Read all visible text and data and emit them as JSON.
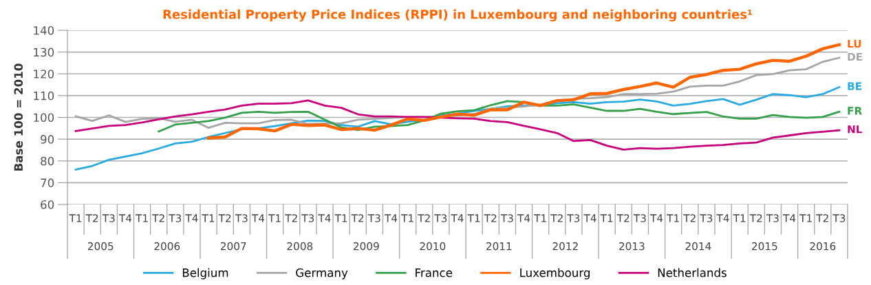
{
  "chart_data": {
    "type": "line",
    "title": "Residential Property Price Indices (RPPI) in Luxembourg and neighboring countries¹",
    "ylabel": "Base 100 = 2010",
    "categories": [
      "T1",
      "T2",
      "T3",
      "T4",
      "T1",
      "T2",
      "T3",
      "T4",
      "T1",
      "T2",
      "T3",
      "T4",
      "T1",
      "T2",
      "T3",
      "T4",
      "T1",
      "T2",
      "T3",
      "T4",
      "T1",
      "T2",
      "T3",
      "T4",
      "T1",
      "T2",
      "T3",
      "T4",
      "T1",
      "T2",
      "T3",
      "T4",
      "T1",
      "T2",
      "T3",
      "T4",
      "T1",
      "T2",
      "T3",
      "T4",
      "T1",
      "T2",
      "T3",
      "T4",
      "T1",
      "T2",
      "T3"
    ],
    "series": [
      {
        "name": "Belgium",
        "color": "#29abe2",
        "values": [
          76,
          77.7,
          80.5,
          82,
          83.5,
          85.7,
          88,
          88.8,
          91,
          92.8,
          94.6,
          95,
          96,
          97.3,
          98.5,
          98.4,
          96.5,
          95.7,
          98.3,
          96.8,
          98,
          98.9,
          100.9,
          101.7,
          103,
          103.9,
          105.1,
          105.4,
          105.6,
          106.5,
          107,
          106.3,
          107,
          107.2,
          108.2,
          107.3,
          105.4,
          106.2,
          107.5,
          108.4,
          105.8,
          108.1,
          110.7,
          110.2,
          109.3,
          110.7,
          113.9
        ]
      },
      {
        "name": "Germany",
        "color": "#a6a6a6",
        "values": [
          100.5,
          98.4,
          100.9,
          97.9,
          99.3,
          99.6,
          98,
          98.9,
          95.2,
          97.5,
          97.3,
          97.3,
          98.8,
          98.9,
          97,
          97.2,
          97.3,
          98.9,
          99.3,
          99.7,
          100.2,
          100.2,
          100.5,
          100.8,
          101.5,
          104,
          104.5,
          105,
          106,
          107.5,
          108.5,
          108.8,
          109.3,
          110.7,
          110.7,
          110.9,
          111.8,
          114.1,
          114.6,
          114.6,
          116.5,
          119.4,
          119.9,
          121.6,
          122.1,
          125.5,
          127.4
        ]
      },
      {
        "name": "France",
        "color": "#34a04a",
        "values": [
          null,
          null,
          null,
          null,
          null,
          93.5,
          96.7,
          97.5,
          98.3,
          99.9,
          102.1,
          102.6,
          102.1,
          102.5,
          102.6,
          99,
          95.4,
          94.2,
          95.7,
          96,
          96.5,
          98.6,
          101.7,
          102.8,
          103.3,
          105.6,
          107.5,
          107,
          105.4,
          105.4,
          106,
          104.5,
          103,
          103,
          103.9,
          102.6,
          101.5,
          102,
          102.5,
          100.4,
          99.4,
          99.4,
          101.1,
          100.2,
          99.8,
          100.2,
          102.6
        ]
      },
      {
        "name": "Luxembourg",
        "color": "#ff6600",
        "values": [
          null,
          null,
          null,
          null,
          null,
          null,
          null,
          null,
          90.5,
          91,
          94.9,
          94.8,
          93.8,
          96.8,
          96.3,
          96.5,
          94.4,
          94.9,
          94.1,
          96.5,
          99.3,
          98.6,
          100.2,
          101.5,
          101,
          103.5,
          103.5,
          107,
          105.4,
          107.7,
          108.1,
          110.8,
          111,
          112.8,
          114.2,
          115.8,
          113.9,
          118.4,
          119.7,
          121.6,
          122.1,
          124.6,
          126.2,
          125.8,
          128.1,
          131.5,
          133.4
        ]
      },
      {
        "name": "Netherlands",
        "color": "#c8007a",
        "values": [
          93.7,
          94.9,
          96.1,
          96.5,
          97.7,
          99.1,
          100.4,
          101.4,
          102.6,
          103.6,
          105.4,
          106.3,
          106.3,
          106.5,
          107.8,
          105.4,
          104.4,
          101.4,
          100.4,
          100.4,
          100.2,
          100.2,
          99.9,
          99.6,
          99.4,
          98.3,
          97.8,
          96.1,
          94.5,
          92.8,
          89.1,
          89.6,
          87,
          85.2,
          85.9,
          85.6,
          85.9,
          86.5,
          87,
          87.3,
          88,
          88.4,
          90.7,
          91.7,
          92.8,
          93.4,
          94.1
        ]
      }
    ],
    "annotations": [
      "2005",
      "2006",
      "2007",
      "2008",
      "2009",
      "2010",
      "2011",
      "2012",
      "2013",
      "2014",
      "2015",
      "2016",
      "LU",
      "DE",
      "BE",
      "FR",
      "NL"
    ],
    "ylim": [
      60,
      140
    ],
    "yticks": [
      60,
      70,
      80,
      90,
      100,
      110,
      120,
      130,
      140
    ],
    "grid": "y",
    "legend": "bottom",
    "marker": "none",
    "line_style": "solid"
  }
}
